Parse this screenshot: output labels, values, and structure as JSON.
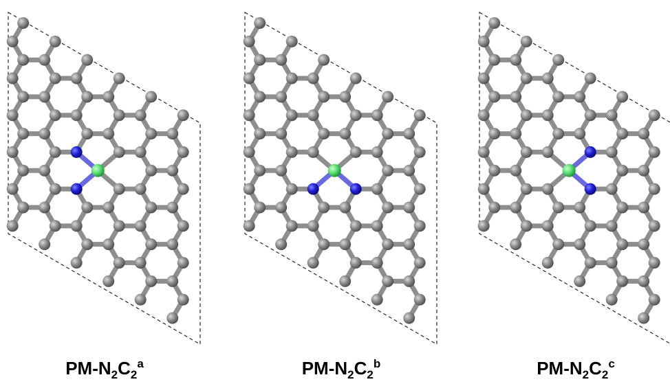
{
  "panels": [
    {
      "label": {
        "base": "PM-N",
        "sub1": "2",
        "mid": "C",
        "sub2": "2",
        "sup": "a"
      }
    },
    {
      "label": {
        "base": "PM-N",
        "sub1": "2",
        "mid": "C",
        "sub2": "2",
        "sup": "b"
      }
    },
    {
      "label": {
        "base": "PM-N",
        "sub1": "2",
        "mid": "C",
        "sub2": "2",
        "sup": "c"
      }
    }
  ]
}
